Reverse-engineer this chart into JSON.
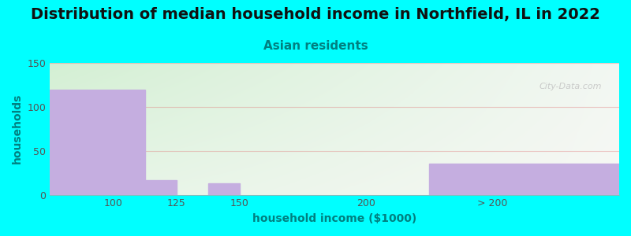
{
  "title": "Distribution of median household income in Northfield, IL in 2022",
  "subtitle": "Asian residents",
  "xlabel": "household income ($1000)",
  "ylabel": "households",
  "background_color": "#00ffff",
  "bar_color": "#c5aee0",
  "categories": [
    "100",
    "125",
    "150",
    "200",
    "> 200"
  ],
  "values": [
    120,
    17,
    13,
    0,
    35
  ],
  "bar_lefts": [
    75,
    112.5,
    137.5,
    162.5,
    225
  ],
  "bar_widths": [
    37.5,
    12.5,
    12.5,
    37.5,
    75
  ],
  "xlim": [
    75,
    300
  ],
  "ylim": [
    0,
    150
  ],
  "yticks": [
    0,
    50,
    100,
    150
  ],
  "xtick_positions": [
    100,
    125,
    150,
    200,
    250
  ],
  "xtick_labels": [
    "100",
    "125",
    "150",
    "200",
    "> 200"
  ],
  "title_fontsize": 14,
  "subtitle_fontsize": 11,
  "subtitle_color": "#008080",
  "axis_label_fontsize": 10,
  "tick_fontsize": 9,
  "tick_color": "#555555",
  "watermark": "City-Data.com",
  "grid_color": "#e08080",
  "grid_alpha": 0.4,
  "title_color": "#111111",
  "ylabel_color": "#008080",
  "xlabel_color": "#008080",
  "gradient_colors": [
    "#d8f0d8",
    "#eaf5ea",
    "#f0faf0",
    "#f8fdf8",
    "#fafafa",
    "#f5f5f0"
  ]
}
